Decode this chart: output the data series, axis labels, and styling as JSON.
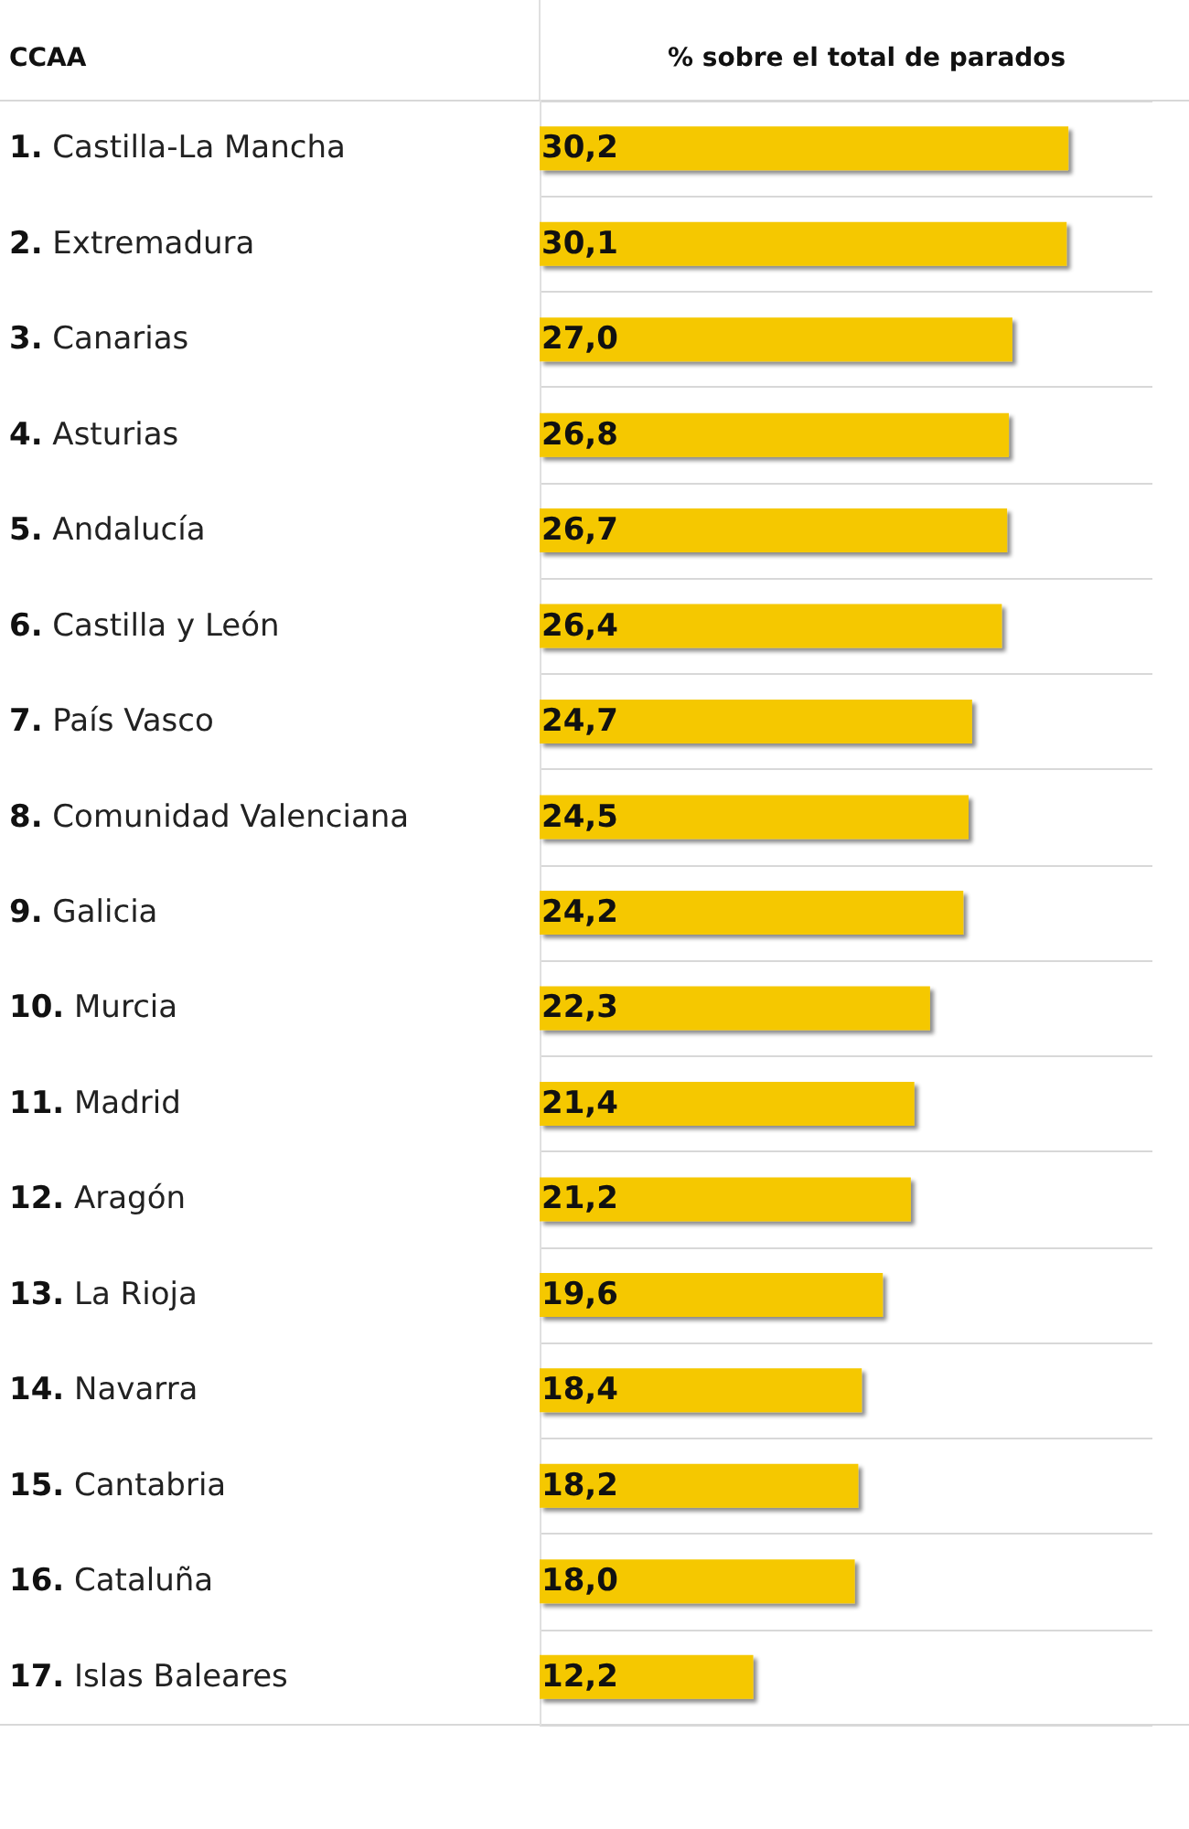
{
  "chart_data": {
    "type": "bar",
    "orientation": "horizontal",
    "ylabel": "CCAA",
    "xlabel": "% sobre el total de parados",
    "categories": [
      "1. Castilla-La Mancha",
      "2. Extremadura",
      "3. Canarias",
      "4. Asturias",
      "5. Andalucía",
      "6. Castilla y León",
      "7. País Vasco",
      "8. Comunidad Valenciana",
      "9. Galicia",
      "10. Murcia",
      "11. Madrid",
      "12. Aragón",
      "13. La Rioja",
      "14. Navarra",
      "15. Cantabria",
      "16. Cataluña",
      "17. Islas Baleares"
    ],
    "values": [
      30.2,
      30.1,
      27.0,
      26.8,
      26.7,
      26.4,
      24.7,
      24.5,
      24.2,
      22.3,
      21.4,
      21.2,
      19.6,
      18.4,
      18.2,
      18.0,
      12.2
    ],
    "value_labels": [
      "30,2",
      "30,1",
      "27,0",
      "26,8",
      "26,7",
      "26,4",
      "24,7",
      "24,5",
      "24,2",
      "22,3",
      "21,4",
      "21,2",
      "19,6",
      "18,4",
      "18,2",
      "18,0",
      "12,2"
    ],
    "color": "#f5c800",
    "grid": "y",
    "tick_labels": "y"
  }
}
